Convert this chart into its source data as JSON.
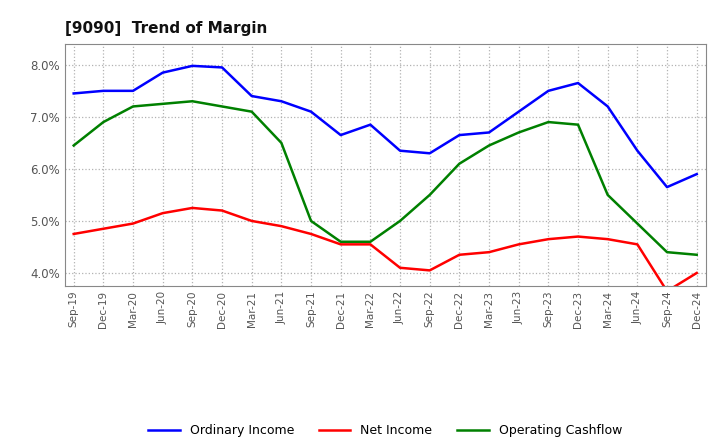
{
  "title": "[9090]  Trend of Margin",
  "labels": [
    "Sep-19",
    "Dec-19",
    "Mar-20",
    "Jun-20",
    "Sep-20",
    "Dec-20",
    "Mar-21",
    "Jun-21",
    "Sep-21",
    "Dec-21",
    "Mar-22",
    "Jun-22",
    "Sep-22",
    "Dec-22",
    "Mar-23",
    "Jun-23",
    "Sep-23",
    "Dec-23",
    "Mar-24",
    "Jun-24",
    "Sep-24",
    "Dec-24"
  ],
  "ordinary_income": [
    7.45,
    7.5,
    7.5,
    7.85,
    7.98,
    7.95,
    7.4,
    7.3,
    7.1,
    6.65,
    6.85,
    6.35,
    6.3,
    6.65,
    6.7,
    7.1,
    7.5,
    7.65,
    7.2,
    6.35,
    5.65,
    5.9
  ],
  "net_income": [
    4.75,
    4.85,
    4.95,
    5.15,
    5.25,
    5.2,
    5.0,
    4.9,
    4.75,
    4.55,
    4.55,
    4.1,
    4.05,
    4.35,
    4.4,
    4.55,
    4.65,
    4.7,
    4.65,
    4.55,
    3.65,
    4.0
  ],
  "operating_cashflow": [
    6.45,
    6.9,
    7.2,
    7.25,
    7.3,
    7.2,
    7.1,
    6.5,
    5.0,
    4.6,
    4.6,
    5.0,
    5.5,
    6.1,
    6.45,
    6.7,
    6.9,
    6.85,
    5.5,
    4.95,
    4.4,
    4.35
  ],
  "ordinary_income_color": "#0000FF",
  "net_income_color": "#FF0000",
  "operating_cashflow_color": "#008000",
  "ylim": [
    3.75,
    8.4
  ],
  "yticks": [
    4.0,
    5.0,
    6.0,
    7.0,
    8.0
  ],
  "background_color": "#FFFFFF",
  "plot_bg_color": "#FFFFFF",
  "grid_color": "#aaaaaa",
  "legend_labels": [
    "Ordinary Income",
    "Net Income",
    "Operating Cashflow"
  ]
}
